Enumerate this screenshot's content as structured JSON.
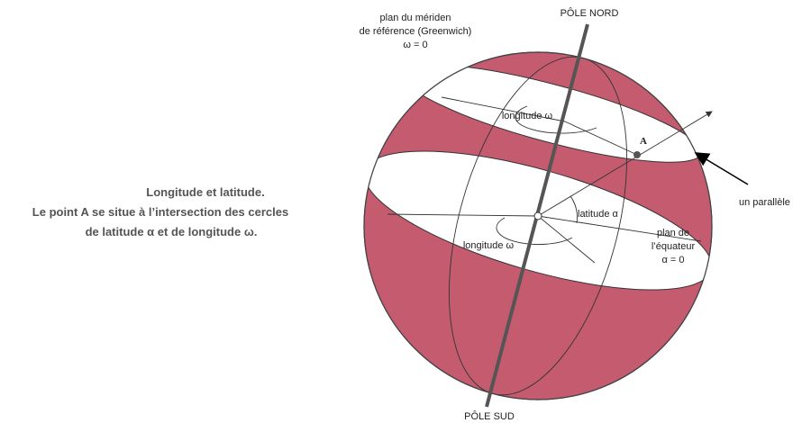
{
  "caption": {
    "lines": [
      "Longitude et latitude.",
      "Le point A se situe à l’intersection des cercles",
      "de latitude α et de longitude ω."
    ]
  },
  "labels": {
    "meridian": [
      "plan du mériden",
      "de référence (Greenwich)",
      "ω = 0"
    ],
    "north_pole": "PÔLE NORD",
    "south_pole": "PÔLE SUD",
    "longitude_top": "longitude ω",
    "longitude_bottom": "longitude ω",
    "latitude": "latitude α",
    "point": "A",
    "parallel": "un parallèle",
    "equator": [
      "plan de",
      "l’équateur",
      "α = 0"
    ]
  }
}
